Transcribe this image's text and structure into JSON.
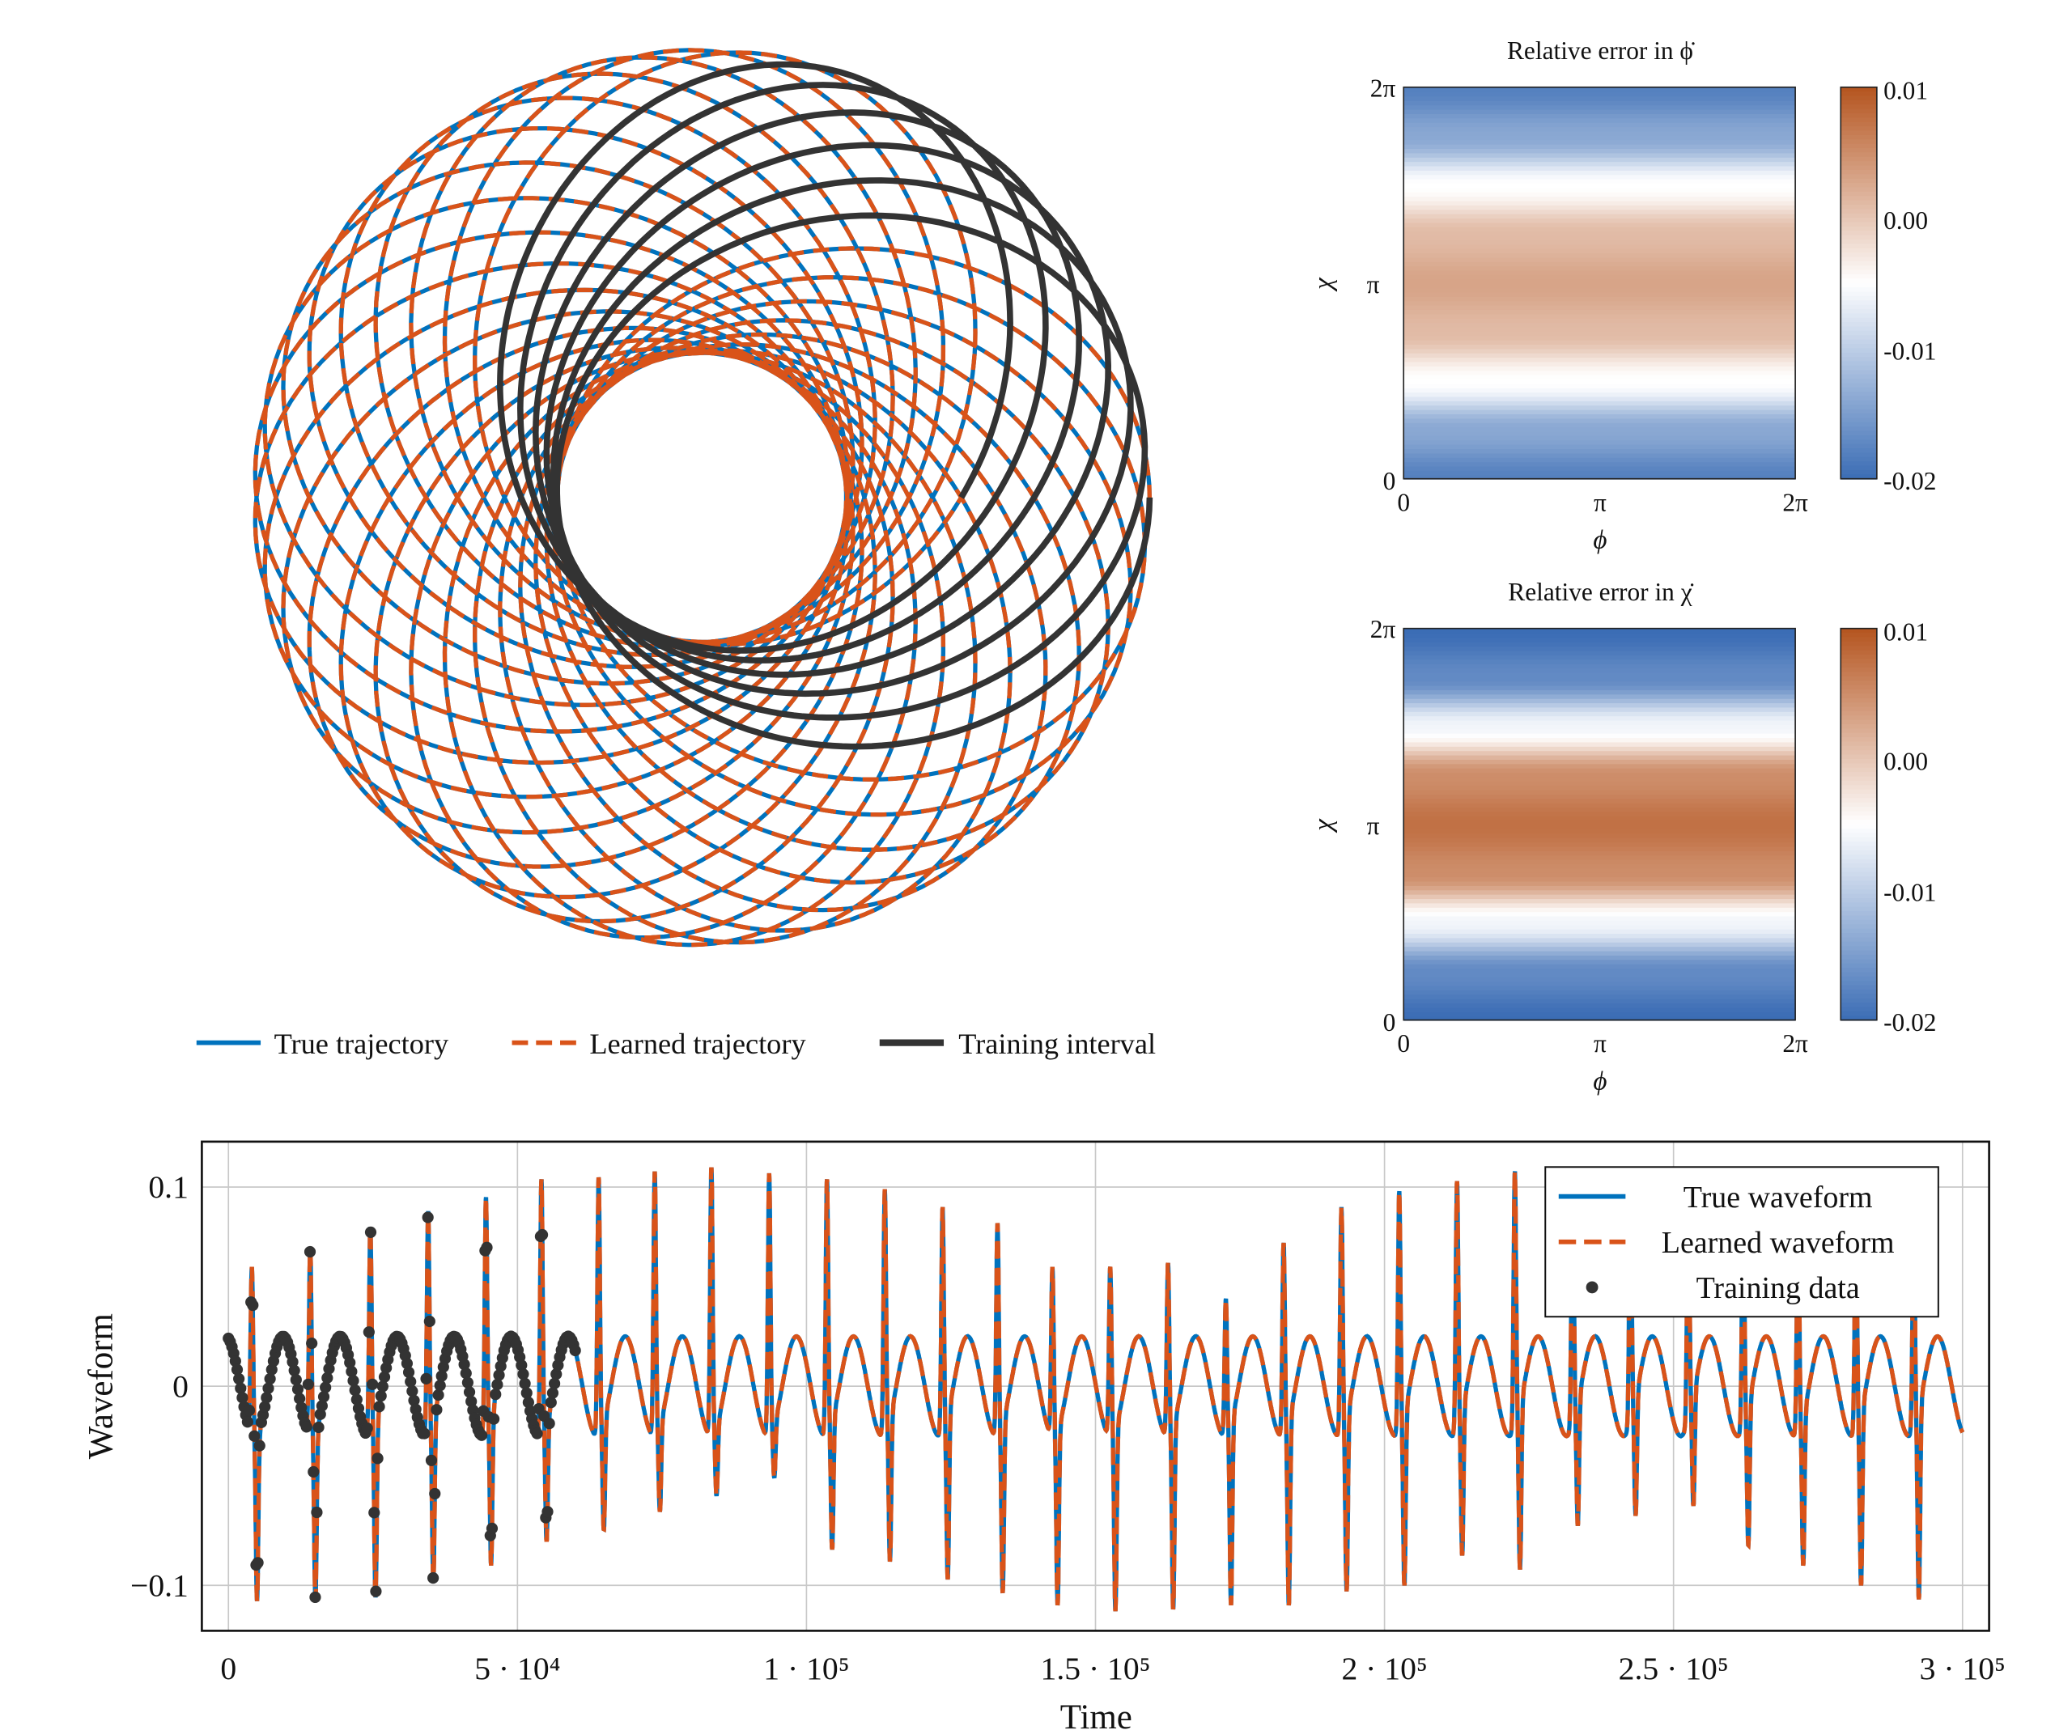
{
  "orbit": {
    "legend": [
      {
        "label": "True trajectory",
        "color": "#0072BD",
        "style": "solid"
      },
      {
        "label": "Learned trajectory",
        "color": "#D95319",
        "style": "dashed"
      },
      {
        "label": "Training interval",
        "color": "#333333",
        "style": "solid"
      }
    ],
    "orbits_total": 30,
    "orbits_training": 6
  },
  "chart_data": [
    {
      "type": "heatmap",
      "title": "Relative error in ϕ̇",
      "xlabel": "ϕ",
      "ylabel": "χ",
      "xticks": [
        "0",
        "π",
        "2π"
      ],
      "yticks": [
        "0",
        "π",
        "2π"
      ],
      "colorbar": {
        "range": [
          -0.02,
          0.01
        ],
        "ticks": [
          "0.01",
          "0.00",
          "-0.01",
          "-0.02"
        ],
        "colors": {
          "low": "#3b6db5",
          "mid": "#ffffff",
          "high": "#b4541f"
        }
      },
      "profile_vs_chi": [
        -0.018,
        -0.014,
        -0.005,
        0.001,
        0.003,
        0.001,
        -0.005,
        -0.014,
        -0.018
      ]
    },
    {
      "type": "heatmap",
      "title": "Relative error in χ̇",
      "xlabel": "ϕ",
      "ylabel": "χ",
      "xticks": [
        "0",
        "π",
        "2π"
      ],
      "yticks": [
        "0",
        "π",
        "2π"
      ],
      "colorbar": {
        "range": [
          -0.02,
          0.01
        ],
        "ticks": [
          "0.01",
          "0.00",
          "-0.01",
          "-0.02"
        ],
        "colors": {
          "low": "#3b6db5",
          "mid": "#ffffff",
          "high": "#b4541f"
        }
      },
      "profile_vs_chi": [
        -0.02,
        -0.017,
        -0.006,
        0.005,
        0.0075,
        0.005,
        -0.006,
        -0.017,
        -0.02
      ]
    },
    {
      "type": "line",
      "xlabel": "Time",
      "ylabel": "Waveform",
      "xlim": [
        -4600,
        304600
      ],
      "ylim": [
        -0.1228,
        0.1228
      ],
      "grid": true,
      "legend_position": "top-right",
      "xticks": [
        {
          "value": 0,
          "label": "0"
        },
        {
          "value": 50000,
          "label": "5 · 10⁴"
        },
        {
          "value": 100000,
          "label": "1 · 10⁵"
        },
        {
          "value": 150000,
          "label": "1.5 · 10⁵"
        },
        {
          "value": 200000,
          "label": "2 · 10⁵"
        },
        {
          "value": 250000,
          "label": "2.5 · 10⁵"
        },
        {
          "value": 300000,
          "label": "3 · 10⁵"
        }
      ],
      "yticks": [
        {
          "value": 0.1,
          "label": "0.1"
        },
        {
          "value": 0,
          "label": "0"
        },
        {
          "value": -0.1,
          "label": "−0.1"
        }
      ],
      "series": [
        {
          "name": "True waveform",
          "color": "#0072BD",
          "style": "solid"
        },
        {
          "name": "Learned waveform",
          "color": "#D95319",
          "style": "dashed"
        },
        {
          "name": "Training data",
          "color": "#333333",
          "style": "markers"
        }
      ],
      "training_interval": [
        0,
        60000
      ],
      "oscillation_amplitude": 0.025,
      "spike_times": [
        4500,
        14600,
        25000,
        35000,
        45000,
        54600,
        64500,
        74200,
        84000,
        94000,
        104000,
        114000,
        124000,
        133500,
        143000,
        153000,
        163000,
        173000,
        183000,
        193000,
        203000,
        213000,
        223000,
        233000,
        243000,
        253000,
        262500,
        272000,
        282000,
        292000
      ],
      "spike_max": [
        0.06,
        0.07,
        0.08,
        0.088,
        0.095,
        0.104,
        0.105,
        0.108,
        0.11,
        0.107,
        0.104,
        0.099,
        0.09,
        0.082,
        0.06,
        0.06,
        0.062,
        0.044,
        0.072,
        0.09,
        0.098,
        0.103,
        0.108,
        0.107,
        0.105,
        0.1,
        0.094,
        0.085,
        0.08,
        0.08
      ],
      "spike_min": [
        -0.108,
        -0.108,
        -0.106,
        -0.098,
        -0.09,
        -0.078,
        -0.072,
        -0.063,
        -0.055,
        -0.046,
        -0.082,
        -0.088,
        -0.097,
        -0.104,
        -0.11,
        -0.113,
        -0.112,
        -0.11,
        -0.11,
        -0.103,
        -0.1,
        -0.085,
        -0.092,
        -0.07,
        -0.065,
        -0.06,
        -0.08,
        -0.09,
        -0.1,
        -0.107
      ]
    }
  ]
}
